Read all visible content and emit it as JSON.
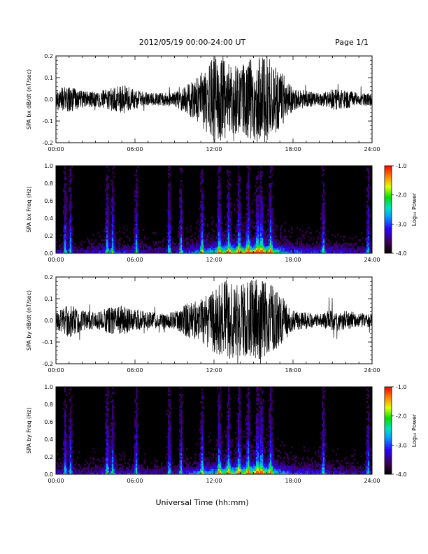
{
  "header": {
    "title": "2012/05/19  00:00-24:00 UT",
    "page": "Page 1/1"
  },
  "xaxis": {
    "label": "Universal Time (hh:mm)",
    "ticks": [
      "00:00",
      "06:00",
      "12:00",
      "18:00",
      "24:00"
    ],
    "range_hours": [
      0,
      24
    ]
  },
  "colorbar": {
    "label": "Log₁₀ Power",
    "ticks": [
      "-1.0",
      "-2.0",
      "-3.0",
      "-4.0"
    ],
    "range": [
      -4.0,
      -1.0
    ]
  },
  "chart_data": [
    {
      "type": "line",
      "ylabel": "SPA bx dB/dt (nT/sec)",
      "ylim": [
        -0.2,
        0.2
      ],
      "yticks": [
        "0.2",
        "0.1",
        "0.0",
        "-0.1",
        "-0.2"
      ],
      "envelope": {
        "x_hours": [
          0,
          1,
          2,
          3,
          4,
          5,
          6,
          7,
          8,
          9,
          10,
          11,
          12,
          13,
          14,
          15,
          16,
          17,
          18,
          19,
          20,
          21,
          22,
          23,
          24
        ],
        "amplitude": [
          0.05,
          0.06,
          0.04,
          0.035,
          0.05,
          0.07,
          0.045,
          0.03,
          0.03,
          0.035,
          0.07,
          0.12,
          0.2,
          0.18,
          0.15,
          0.21,
          0.2,
          0.14,
          0.05,
          0.04,
          0.03,
          0.05,
          0.045,
          0.03,
          0.03
        ]
      }
    },
    {
      "type": "heatmap",
      "ylabel": "SPA bx Freq (Hz)",
      "ylim": [
        0.0,
        1.0
      ],
      "yticks": [
        "1.0",
        "0.8",
        "0.6",
        "0.4",
        "0.2",
        "0.0"
      ],
      "zlim": [
        -4.0,
        -1.0
      ],
      "bursts_hours": [
        0.7,
        1.1,
        3.9,
        4.3,
        6.1,
        8.6,
        9.5,
        11.1,
        12.4,
        13.1,
        13.9,
        14.6,
        15.3,
        15.6,
        16.3,
        20.3,
        23.7
      ]
    },
    {
      "type": "line",
      "ylabel": "SPA by dB/dt (nT/sec)",
      "ylim": [
        -0.2,
        0.2
      ],
      "yticks": [
        "0.2",
        "0.1",
        "0.0",
        "-0.1",
        "-0.2"
      ],
      "envelope": {
        "x_hours": [
          0,
          1,
          2,
          3,
          4,
          5,
          6,
          7,
          8,
          9,
          10,
          11,
          12,
          13,
          14,
          15,
          16,
          17,
          18,
          19,
          20,
          21,
          22,
          23,
          24
        ],
        "amplitude": [
          0.04,
          0.08,
          0.05,
          0.04,
          0.06,
          0.07,
          0.05,
          0.04,
          0.035,
          0.04,
          0.08,
          0.1,
          0.15,
          0.2,
          0.16,
          0.2,
          0.19,
          0.12,
          0.05,
          0.04,
          0.03,
          0.05,
          0.045,
          0.035,
          0.03
        ]
      }
    },
    {
      "type": "heatmap",
      "ylabel": "SPA by Freq (Hz)",
      "ylim": [
        0.0,
        1.0
      ],
      "yticks": [
        "1.0",
        "0.8",
        "0.6",
        "0.4",
        "0.2",
        "0.0"
      ],
      "zlim": [
        -4.0,
        -1.0
      ],
      "bursts_hours": [
        0.7,
        1.1,
        3.9,
        4.3,
        6.1,
        8.6,
        9.5,
        11.1,
        12.4,
        13.1,
        13.9,
        14.6,
        15.3,
        15.6,
        16.3,
        20.3,
        23.7
      ]
    }
  ]
}
